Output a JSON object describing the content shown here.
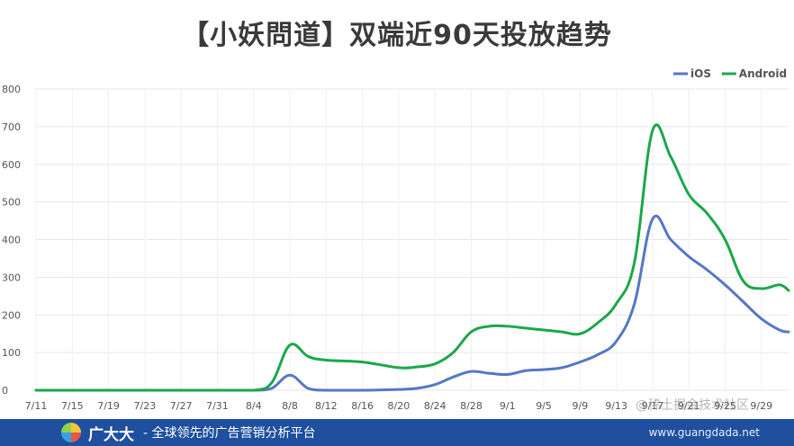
{
  "header": {
    "title": "【小妖問道】双端近90天投放趋势"
  },
  "footer": {
    "brand": "广大大",
    "slogan": "- 全球领先的广告营销分析平台",
    "site": "www.guangdada.net"
  },
  "watermark": "@稀土掘金技术社区",
  "colors": {
    "ios": "#5577c6",
    "android": "#1aa84a",
    "footer_bg": "#1f4f9e"
  },
  "chart_data": {
    "type": "line",
    "title": "【小妖問道】双端近90天投放趋势",
    "xlabel": "",
    "ylabel": "",
    "ylim": [
      0,
      800
    ],
    "y_ticks": [
      0,
      100,
      200,
      300,
      400,
      500,
      600,
      700,
      800
    ],
    "x_ticks": [
      "7/11",
      "7/15",
      "7/19",
      "7/23",
      "7/27",
      "7/31",
      "8/4",
      "8/8",
      "8/12",
      "8/16",
      "8/20",
      "8/24",
      "8/28",
      "9/1",
      "9/5",
      "9/9",
      "9/13",
      "9/17",
      "9/21",
      "9/25",
      "9/29"
    ],
    "grid": true,
    "legend_position": "top-right",
    "x": [
      "7/11",
      "7/15",
      "7/19",
      "7/23",
      "7/27",
      "7/31",
      "8/4",
      "8/6",
      "8/8",
      "8/10",
      "8/12",
      "8/16",
      "8/20",
      "8/22",
      "8/24",
      "8/26",
      "8/28",
      "8/30",
      "9/1",
      "9/3",
      "9/5",
      "9/7",
      "9/9",
      "9/11",
      "9/13",
      "9/15",
      "9/17",
      "9/19",
      "9/21",
      "9/23",
      "9/25",
      "9/27",
      "9/29",
      "10/1",
      "10/2"
    ],
    "series": [
      {
        "name": "iOS",
        "color": "#5577c6",
        "values": [
          0,
          0,
          0,
          0,
          0,
          0,
          0,
          5,
          40,
          5,
          0,
          0,
          2,
          5,
          15,
          35,
          50,
          45,
          42,
          52,
          55,
          60,
          75,
          95,
          130,
          230,
          455,
          400,
          355,
          320,
          280,
          235,
          190,
          160,
          155
        ]
      },
      {
        "name": "Android",
        "color": "#1aa84a",
        "values": [
          0,
          0,
          0,
          0,
          0,
          0,
          0,
          20,
          120,
          90,
          80,
          75,
          60,
          62,
          70,
          100,
          155,
          170,
          170,
          165,
          160,
          155,
          150,
          180,
          230,
          340,
          690,
          620,
          520,
          470,
          400,
          290,
          270,
          280,
          265
        ]
      }
    ]
  }
}
